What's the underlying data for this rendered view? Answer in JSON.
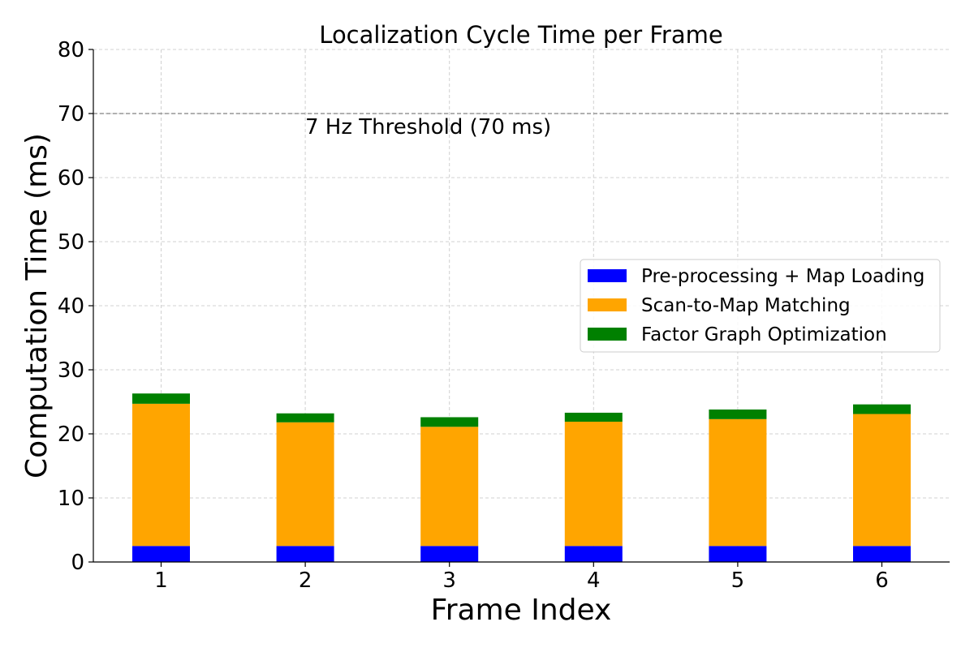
{
  "chart_data": {
    "type": "bar",
    "stacked": true,
    "title": "Localization Cycle Time per Frame",
    "xlabel": "Frame Index",
    "ylabel": "Computation Time (ms)",
    "categories": [
      "1",
      "2",
      "3",
      "4",
      "5",
      "6"
    ],
    "ylim": [
      0,
      80
    ],
    "yticks": [
      0,
      10,
      20,
      30,
      40,
      50,
      60,
      70,
      80
    ],
    "grid": true,
    "legend_position": "center-right",
    "series": [
      {
        "name": "Pre-processing + Map Loading",
        "color": "#0000ff",
        "values": [
          2.5,
          2.5,
          2.5,
          2.5,
          2.5,
          2.5
        ]
      },
      {
        "name": "Scan-to-Map Matching",
        "color": "#ffa500",
        "values": [
          22.2,
          19.3,
          18.6,
          19.4,
          19.8,
          20.6
        ]
      },
      {
        "name": "Factor Graph Optimization",
        "color": "#008000",
        "values": [
          1.6,
          1.4,
          1.5,
          1.4,
          1.5,
          1.5
        ]
      }
    ],
    "threshold": {
      "value": 70,
      "label": "7 Hz Threshold (70 ms)",
      "color": "#808080"
    }
  }
}
